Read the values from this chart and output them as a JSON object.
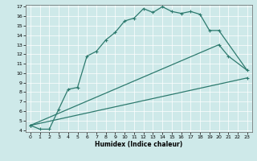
{
  "xlabel": "Humidex (Indice chaleur)",
  "bg_color": "#cee9e9",
  "grid_color": "#ffffff",
  "line_color": "#2d7a6e",
  "line1_x": [
    0,
    1,
    2,
    3,
    4,
    5,
    6,
    7,
    8,
    9,
    10,
    11,
    12,
    13,
    14,
    15,
    16,
    17,
    18,
    19,
    20
  ],
  "line1_y": [
    4.5,
    4.1,
    4.1,
    6.2,
    8.3,
    8.5,
    11.8,
    12.3,
    13.5,
    14.3,
    15.5,
    15.8,
    16.8,
    16.4,
    17.0,
    16.5,
    16.3,
    16.5,
    16.2,
    14.5,
    14.5
  ],
  "line2_x": [
    0,
    20,
    21,
    23
  ],
  "line2_y": [
    4.5,
    13.0,
    11.8,
    10.3
  ],
  "line3_x": [
    0,
    23
  ],
  "line3_y": [
    4.5,
    9.5
  ],
  "xlim": [
    -0.5,
    23.5
  ],
  "ylim": [
    3.8,
    17.2
  ],
  "yticks": [
    4,
    5,
    6,
    7,
    8,
    9,
    10,
    11,
    12,
    13,
    14,
    15,
    16,
    17
  ],
  "xticks": [
    0,
    1,
    2,
    3,
    4,
    5,
    6,
    7,
    8,
    9,
    10,
    11,
    12,
    13,
    14,
    15,
    16,
    17,
    18,
    19,
    20,
    21,
    22,
    23
  ],
  "tick_fontsize": 4.5,
  "xlabel_fontsize": 5.5
}
